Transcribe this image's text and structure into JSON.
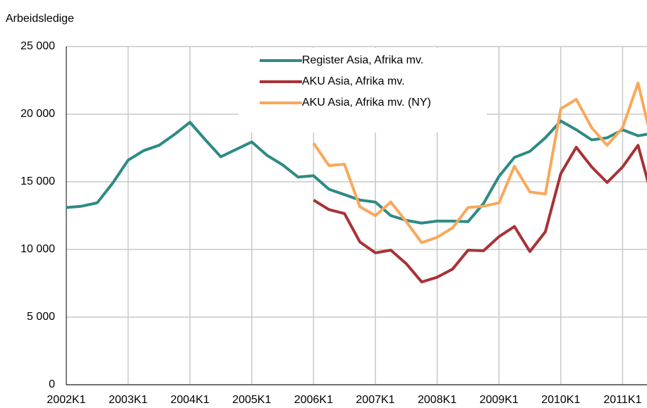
{
  "chart_data": {
    "type": "line",
    "y_label": "Arbeidsledige",
    "categories": [
      "2002K1",
      null,
      null,
      null,
      "2003K1",
      null,
      null,
      null,
      "2004K1",
      null,
      null,
      null,
      "2005K1",
      null,
      null,
      null,
      "2006K1",
      null,
      null,
      null,
      "2007K1",
      null,
      null,
      null,
      "2008K1",
      null,
      null,
      null,
      "2009K1",
      null,
      null,
      null,
      "2010K1",
      null,
      null,
      null,
      "2011K1",
      null,
      null
    ],
    "series": [
      {
        "name": "Register Asia, Afrika mv.",
        "color": "#2e8a84",
        "values": [
          13100,
          13200,
          13450,
          14900,
          16600,
          17300,
          17700,
          18500,
          19400,
          18100,
          16850,
          17400,
          17950,
          16950,
          16250,
          15350,
          15450,
          14450,
          14050,
          13650,
          13500,
          12500,
          12150,
          11950,
          12100,
          12100,
          12050,
          13400,
          15400,
          16800,
          17250,
          18250,
          19500,
          18850,
          18100,
          18250,
          18850,
          18400,
          18600
        ]
      },
      {
        "name": "AKU Asia, Afrika mv.",
        "color": "#a83236",
        "values": [
          null,
          null,
          null,
          null,
          null,
          null,
          null,
          null,
          null,
          null,
          null,
          null,
          null,
          null,
          null,
          null,
          13650,
          12950,
          12650,
          10550,
          9750,
          9950,
          8950,
          7600,
          7950,
          8550,
          9950,
          9900,
          10950,
          11700,
          9850,
          11300,
          15600,
          17550,
          16100,
          14950,
          16100,
          17700,
          13500
        ]
      },
      {
        "name": "AKU Asia, Afrika mv. (NY)",
        "color": "#f9a85a",
        "values": [
          null,
          null,
          null,
          null,
          null,
          null,
          null,
          null,
          null,
          null,
          null,
          null,
          null,
          null,
          null,
          null,
          17850,
          16200,
          16300,
          13150,
          12500,
          13500,
          12050,
          10500,
          10900,
          11600,
          13100,
          13200,
          13450,
          16150,
          14250,
          14100,
          20400,
          21100,
          19000,
          17700,
          19000,
          22300,
          17500
        ]
      }
    ],
    "ylim": [
      0,
      25000
    ],
    "yticks": [
      {
        "value": 0,
        "label": "0"
      },
      {
        "value": 5000,
        "label": "5 000"
      },
      {
        "value": 10000,
        "label": "10 000"
      },
      {
        "value": 15000,
        "label": "15 000"
      },
      {
        "value": 20000,
        "label": "20 000"
      },
      {
        "value": 25000,
        "label": "25 000"
      }
    ],
    "grid": true
  }
}
